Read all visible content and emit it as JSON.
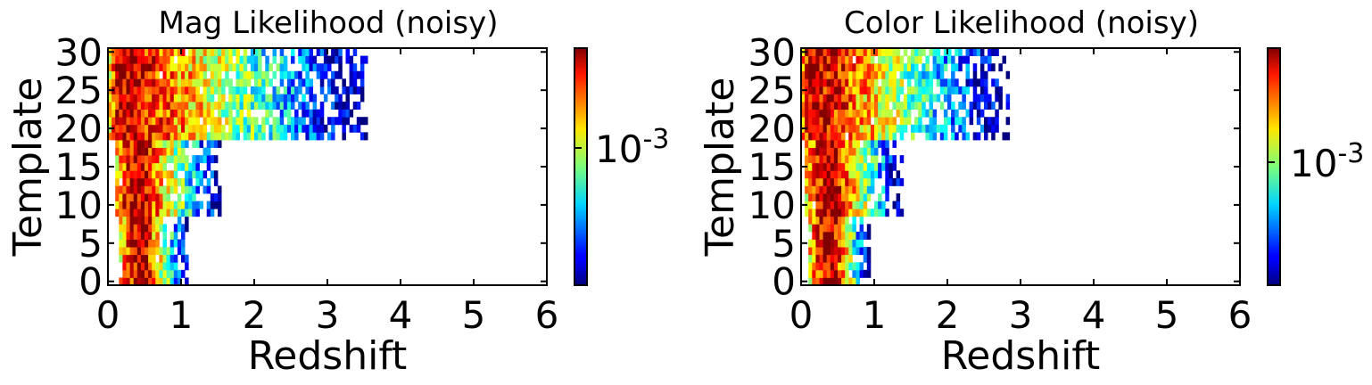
{
  "chart_data": [
    {
      "type": "heatmap",
      "title": "Mag Likelihood (noisy)",
      "xlabel": "Redshift",
      "ylabel": "Template",
      "xlim": [
        0,
        6
      ],
      "ylim": [
        -0.5,
        30.5
      ],
      "xticks": [
        "0",
        "1",
        "2",
        "3",
        "4",
        "5",
        "6"
      ],
      "yticks": [
        "0",
        "5",
        "10",
        "15",
        "20",
        "25",
        "30"
      ],
      "colorbar": {
        "tick_base": "10",
        "tick_exp": "-3",
        "scale": "log",
        "colormap": "jet"
      },
      "bands": [
        {
          "templates": [
            0,
            8
          ],
          "z_start": 0.15,
          "z_peak": 0.5,
          "z_end": 1.1
        },
        {
          "templates": [
            9,
            18
          ],
          "z_start": 0.1,
          "z_peak": 0.45,
          "z_end": 1.55
        },
        {
          "templates": [
            19,
            30
          ],
          "z_start": 0.0,
          "z_peak": 0.25,
          "z_end": 3.5
        }
      ]
    },
    {
      "type": "heatmap",
      "title": "Color Likelihood (noisy)",
      "xlabel": "Redshift",
      "ylabel": "Template",
      "xlim": [
        0,
        6
      ],
      "ylim": [
        -0.5,
        30.5
      ],
      "xticks": [
        "0",
        "1",
        "2",
        "3",
        "4",
        "5",
        "6"
      ],
      "yticks": [
        "0",
        "5",
        "10",
        "15",
        "20",
        "25",
        "30"
      ],
      "colorbar": {
        "tick_base": "10",
        "tick_exp": "-3",
        "scale": "log",
        "colormap": "jet"
      },
      "bands": [
        {
          "templates": [
            0,
            8
          ],
          "z_start": 0.1,
          "z_peak": 0.45,
          "z_end": 0.95
        },
        {
          "templates": [
            9,
            18
          ],
          "z_start": 0.05,
          "z_peak": 0.45,
          "z_end": 1.4
        },
        {
          "templates": [
            19,
            30
          ],
          "z_start": 0.0,
          "z_peak": 0.2,
          "z_end": 2.8
        }
      ]
    }
  ]
}
